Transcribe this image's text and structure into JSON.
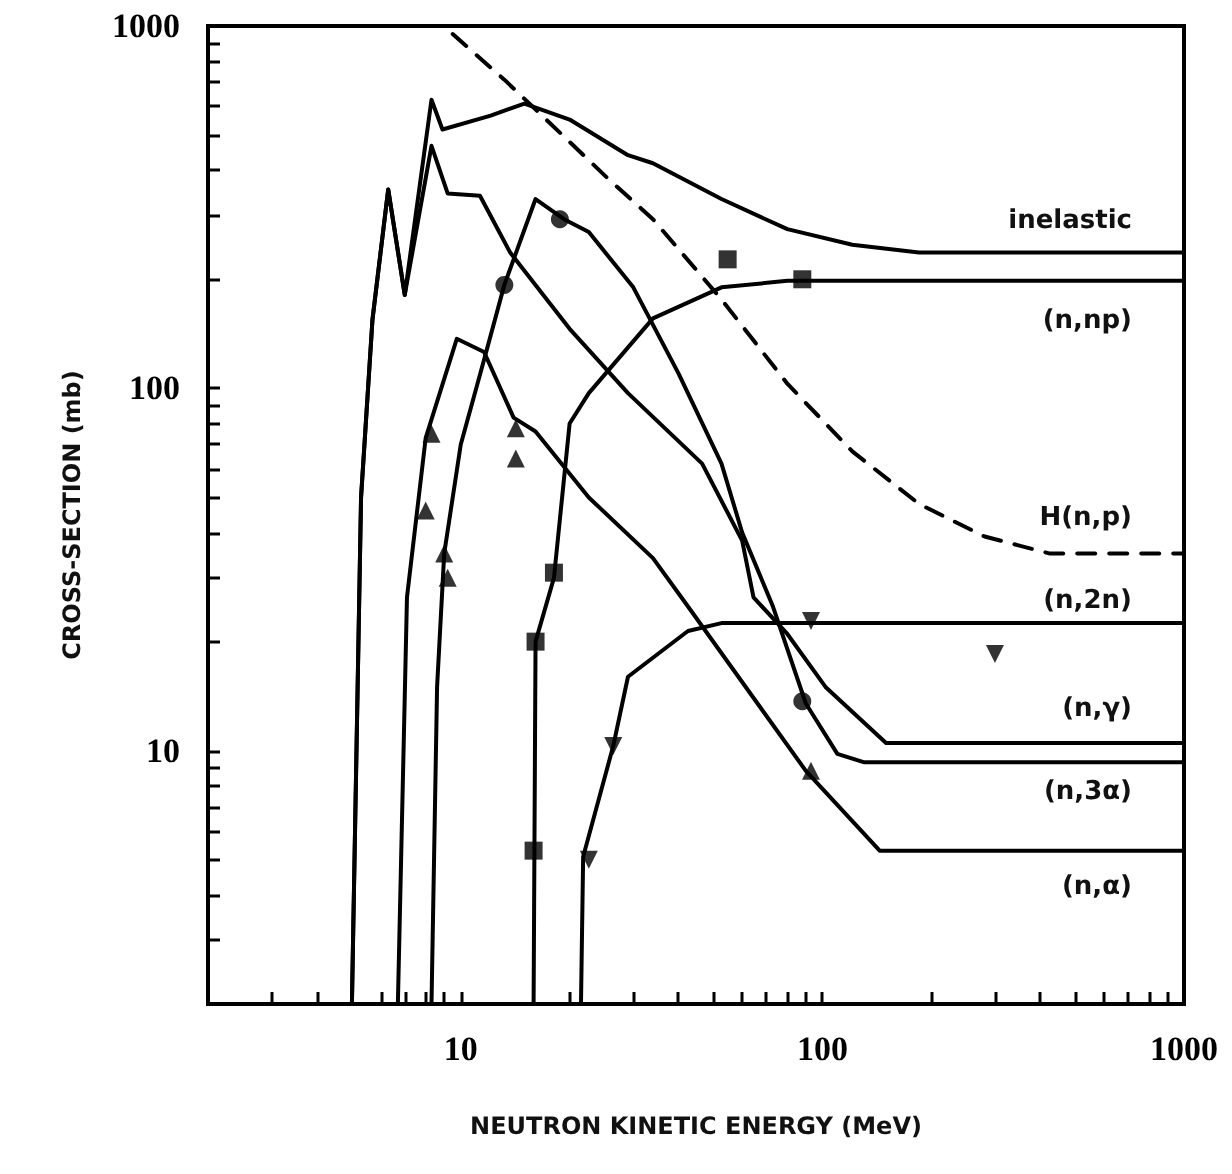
{
  "chart_data": {
    "type": "line",
    "xlabel": "NEUTRON KINETIC ENERGY (MeV)",
    "ylabel": "CROSS-SECTION (mb)",
    "log": "xy",
    "xlim": [
      2,
      1000
    ],
    "ylim": [
      2,
      1000
    ],
    "xticks": [
      {
        "value": 2,
        "label": null
      },
      {
        "value": 3,
        "label": null
      },
      {
        "value": 4,
        "label": null
      },
      {
        "value": 5,
        "label": null
      },
      {
        "value": 6,
        "label": null
      },
      {
        "value": 7,
        "label": null
      },
      {
        "value": 8,
        "label": null
      },
      {
        "value": 9,
        "label": null
      },
      10,
      {
        "value": 20,
        "label": null
      },
      {
        "value": 30,
        "label": null
      },
      {
        "value": 40,
        "label": null
      },
      {
        "value": 50,
        "label": null
      },
      {
        "value": 60,
        "label": null
      },
      {
        "value": 70,
        "label": null
      },
      {
        "value": 80,
        "label": null
      },
      {
        "value": 90,
        "label": null
      },
      100,
      {
        "value": 200,
        "label": null
      },
      {
        "value": 300,
        "label": null
      },
      {
        "value": 400,
        "label": null
      },
      {
        "value": 500,
        "label": null
      },
      {
        "value": 600,
        "label": null
      },
      {
        "value": 700,
        "label": null
      },
      {
        "value": 800,
        "label": null
      },
      {
        "value": 900,
        "label": null
      },
      1000
    ],
    "yticks": [
      {
        "value": 2,
        "label": null
      },
      {
        "value": 3,
        "label": null
      },
      {
        "value": 4,
        "label": null
      },
      {
        "value": 5,
        "label": null
      },
      {
        "value": 6,
        "label": null
      },
      {
        "value": 7,
        "label": null
      },
      {
        "value": 8,
        "label": null
      },
      {
        "value": 9,
        "label": null
      },
      10,
      {
        "value": 20,
        "label": null
      },
      {
        "value": 30,
        "label": null
      },
      {
        "value": 40,
        "label": null
      },
      {
        "value": 50,
        "label": null
      },
      {
        "value": 60,
        "label": null
      },
      {
        "value": 70,
        "label": null
      },
      {
        "value": 80,
        "label": null
      },
      {
        "value": 90,
        "label": null
      },
      100,
      {
        "value": 200,
        "label": null
      },
      {
        "value": 300,
        "label": null
      },
      {
        "value": 400,
        "label": null
      },
      {
        "value": 500,
        "label": null
      },
      {
        "value": 600,
        "label": null
      },
      {
        "value": 700,
        "label": null
      },
      {
        "value": 800,
        "label": null
      },
      {
        "value": 900,
        "label": null
      },
      1000
    ],
    "series": [
      {
        "name": "inelastic",
        "color": "#000000",
        "line_style": "solid",
        "x": [
          5.0,
          5.3,
          5.7,
          6.3,
          7.0,
          8.3,
          8.9,
          12.1,
          15.0,
          20,
          29,
          34,
          52.6,
          80,
          121,
          185,
          1000
        ],
        "values": [
          2,
          50,
          155,
          354,
          181,
          626,
          518,
          566,
          611,
          552,
          440,
          418,
          333,
          275,
          249,
          237,
          237
        ]
      },
      {
        "name": "(n,np)",
        "color": "#000000",
        "line_style": "solid",
        "x": [
          15.9,
          16.1,
          18.1,
          20,
          22.6,
          34,
          52.6,
          80,
          1000
        ],
        "values": [
          2,
          20,
          30,
          80,
          97,
          156,
          190,
          198,
          198
        ]
      },
      {
        "name": "H(n,p)",
        "color": "#000000",
        "line_style": "dashed",
        "x": [
          9.5,
          13.2,
          25.7,
          34,
          52.6,
          80,
          121,
          185,
          281,
          426,
          1000
        ],
        "values": [
          950,
          711,
          377,
          293,
          176,
          103,
          67,
          48,
          39,
          35,
          35
        ]
      },
      {
        "name": "(n,2n)",
        "color": "#000000",
        "line_style": "solid",
        "x": [
          21.5,
          21.8,
          26.4,
          29,
          42.5,
          52.6,
          1000
        ],
        "values": [
          2,
          5.1,
          10.3,
          16,
          21.4,
          22.5,
          22.5
        ]
      },
      {
        "name": "(n,γ)",
        "color": "#000000",
        "line_style": "solid",
        "x": [
          5.0,
          5.3,
          5.7,
          6.3,
          7.0,
          8.3,
          9.2,
          11.3,
          13.7,
          20,
          29,
          46.5,
          60,
          64.5,
          80,
          102,
          150,
          1000
        ],
        "values": [
          2,
          50,
          155,
          354,
          181,
          467,
          345,
          340,
          237,
          146,
          97,
          62,
          38,
          26.5,
          21,
          15,
          10.5,
          10.5
        ]
      },
      {
        "name": "(n,3α)",
        "color": "#000000",
        "line_style": "solid",
        "x": [
          8.3,
          8.6,
          9.0,
          10,
          11.6,
          13.2,
          16.1,
          19.3,
          22.6,
          30,
          40,
          52.6,
          60,
          73,
          90,
          110,
          130,
          1000
        ],
        "values": [
          2,
          15,
          35,
          70,
          120,
          193,
          333,
          293,
          270,
          190,
          110,
          62,
          40,
          25,
          13.5,
          9.8,
          9.3,
          9.3
        ]
      },
      {
        "name": "(n,α)",
        "color": "#000000",
        "line_style": "solid",
        "x": [
          6.7,
          7.1,
          8.0,
          9.75,
          11.6,
          14.0,
          16.1,
          22.6,
          34,
          42.5,
          90,
          144,
          1000
        ],
        "values": [
          2,
          26.5,
          73,
          137,
          126,
          83,
          76,
          50,
          34,
          25,
          8.8,
          5.3,
          5.3
        ]
      },
      {
        "type": "scatter",
        "marker": "triangle",
        "color": "#000000",
        "x": [
          8.0,
          8.3,
          9.0,
          9.2,
          14.2,
          14.2,
          93
        ],
        "values": [
          46,
          75,
          35,
          30,
          77.6,
          64,
          8.8
        ]
      },
      {
        "type": "scatter",
        "marker": "circle",
        "color": "#000000",
        "x": [
          13.2,
          18.8,
          88
        ],
        "values": [
          193,
          293,
          13.7
        ]
      },
      {
        "type": "scatter",
        "marker": "square",
        "color": "#000000",
        "x": [
          15.9,
          16.1,
          18.1,
          54.7,
          88
        ],
        "values": [
          5.3,
          20,
          31,
          227,
          200
        ]
      },
      {
        "type": "scatter",
        "marker": "triangle-down",
        "color": "#000000",
        "x": [
          22.6,
          26.4,
          93,
          300
        ],
        "values": [
          5.0,
          10.3,
          22.8,
          18.5
        ]
      }
    ]
  }
}
